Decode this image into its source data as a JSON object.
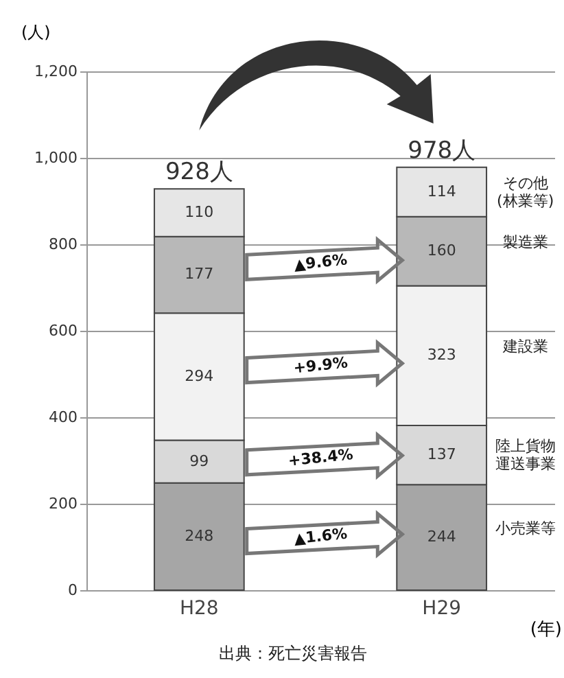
{
  "chart_data": {
    "type": "bar",
    "stacked": true,
    "categories": [
      "H28",
      "H29"
    ],
    "series": [
      {
        "name": "小売業等",
        "color": "#a6a6a6",
        "values": [
          248,
          244
        ]
      },
      {
        "name": "陸上貨物運送事業",
        "color": "#d9d9d9",
        "values": [
          99,
          137
        ]
      },
      {
        "name": "建設業",
        "color": "#f2f2f2",
        "values": [
          294,
          323
        ]
      },
      {
        "name": "製造業",
        "color": "#b8b8b8",
        "values": [
          177,
          160
        ]
      },
      {
        "name": "その他(林業等)",
        "color": "#e6e6e6",
        "values": [
          110,
          114
        ]
      }
    ],
    "data_labels": true,
    "totals": [
      "928人",
      "978人"
    ],
    "ylim": [
      0,
      1200
    ],
    "yticks": [
      0,
      200,
      400,
      600,
      {
        "value": 800,
        "label": "800"
      },
      {
        "value": 1000,
        "label": "1,000"
      },
      {
        "value": 1200,
        "label": "1,200"
      }
    ],
    "ylabel": "(人)",
    "xlabel": "(年)",
    "grid": "y",
    "legend": false,
    "annotations": [
      "▲1.6%",
      "+38.4%",
      "+9.9%",
      "▲9.6%",
      "出典：死亡災害報告"
    ]
  }
}
